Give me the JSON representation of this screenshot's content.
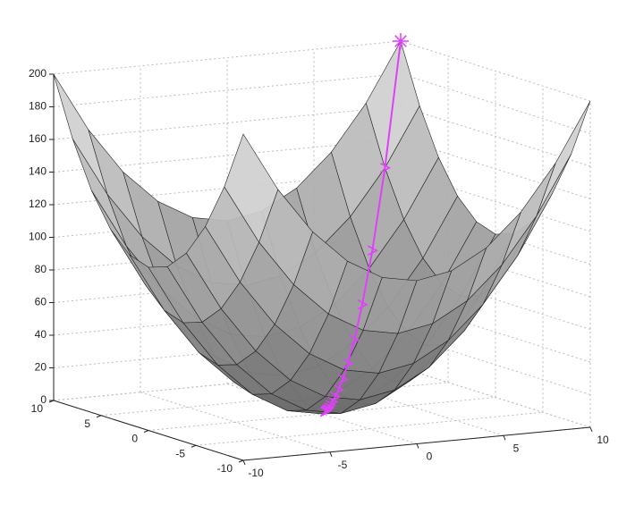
{
  "chart_data": {
    "type": "surface",
    "xlim": [
      -10,
      10
    ],
    "ylim": [
      -10,
      10
    ],
    "zlim": [
      0,
      200
    ],
    "xticks": [
      -10,
      -5,
      0,
      5,
      10
    ],
    "yticks": [
      -10,
      -5,
      0,
      5,
      10
    ],
    "zticks": [
      0,
      20,
      40,
      60,
      80,
      100,
      120,
      140,
      160,
      180,
      200
    ],
    "grid": true,
    "surface": {
      "color": "#e6e6e6",
      "edge_color": "#222222",
      "x": [
        -10,
        -8,
        -6,
        -4,
        -2,
        0,
        2,
        4,
        6,
        8,
        10
      ],
      "y": [
        -10,
        -8,
        -6,
        -4,
        -2,
        0,
        2,
        4,
        6,
        8,
        10
      ],
      "z": [
        [
          200,
          164,
          136,
          116,
          104,
          100,
          104,
          116,
          136,
          164,
          200
        ],
        [
          164,
          128,
          100,
          80,
          68,
          64,
          68,
          80,
          100,
          128,
          164
        ],
        [
          136,
          100,
          72,
          52,
          40,
          36,
          40,
          52,
          72,
          100,
          136
        ],
        [
          116,
          80,
          52,
          32,
          20,
          16,
          20,
          32,
          52,
          80,
          116
        ],
        [
          104,
          68,
          40,
          20,
          8,
          4,
          8,
          20,
          40,
          68,
          104
        ],
        [
          100,
          64,
          36,
          16,
          4,
          0,
          4,
          16,
          36,
          64,
          100
        ],
        [
          104,
          68,
          40,
          20,
          8,
          4,
          8,
          20,
          40,
          68,
          104
        ],
        [
          116,
          80,
          52,
          32,
          20,
          16,
          20,
          32,
          52,
          80,
          116
        ],
        [
          136,
          100,
          72,
          52,
          40,
          36,
          40,
          52,
          72,
          100,
          136
        ],
        [
          164,
          128,
          100,
          80,
          68,
          64,
          68,
          80,
          100,
          128,
          164
        ],
        [
          200,
          164,
          136,
          116,
          104,
          100,
          104,
          116,
          136,
          164,
          200
        ]
      ]
    },
    "path": {
      "color": "#e040fb",
      "x": [
        10,
        8,
        6.4,
        5.12,
        4.1,
        3.28,
        2.62,
        2.1,
        1.68,
        1.34,
        1.07,
        0.86,
        0.69,
        0.55,
        0.44,
        0.35
      ],
      "y": [
        10,
        8,
        6.4,
        5.12,
        4.1,
        3.28,
        2.62,
        2.1,
        1.68,
        1.34,
        1.07,
        0.86,
        0.69,
        0.55,
        0.44,
        0.35
      ],
      "z": [
        200,
        128,
        81.92,
        52.43,
        33.62,
        21.52,
        13.73,
        8.82,
        5.64,
        3.59,
        2.29,
        1.48,
        0.95,
        0.61,
        0.39,
        0.25
      ]
    }
  }
}
